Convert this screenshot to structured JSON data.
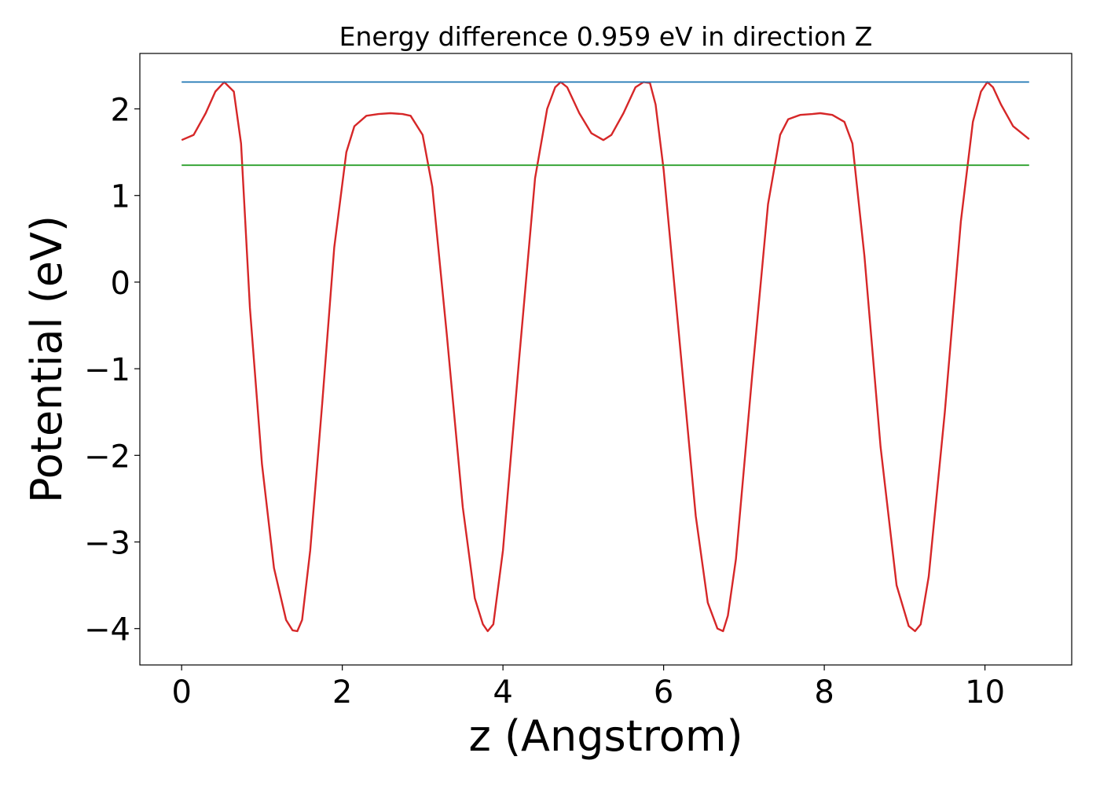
{
  "chart_data": {
    "type": "line",
    "title": "Energy difference 0.959 eV in direction Z",
    "xlabel": "z (Angstrom)",
    "ylabel": "Potential (eV)",
    "xlim": [
      -0.52,
      11.08
    ],
    "ylim": [
      -4.42,
      2.64
    ],
    "xticks": [
      0,
      2,
      4,
      6,
      8,
      10
    ],
    "xtick_labels": [
      "0",
      "2",
      "4",
      "6",
      "8",
      "10"
    ],
    "yticks": [
      -4,
      -3,
      -2,
      -1,
      0,
      1,
      2
    ],
    "ytick_labels": [
      "−4",
      "−3",
      "−2",
      "−1",
      "0",
      "1",
      "2"
    ],
    "grid": false,
    "legend": "none",
    "series": [
      {
        "color": "#d62728",
        "x": [
          0.0,
          0.15,
          0.3,
          0.42,
          0.53,
          0.65,
          0.74,
          0.85,
          1.0,
          1.15,
          1.3,
          1.38,
          1.44,
          1.5,
          1.6,
          1.75,
          1.9,
          2.05,
          2.15,
          2.3,
          2.45,
          2.6,
          2.75,
          2.85,
          3.0,
          3.12,
          3.3,
          3.5,
          3.65,
          3.75,
          3.81,
          3.88,
          4.0,
          4.2,
          4.4,
          4.55,
          4.65,
          4.72,
          4.8,
          4.95,
          5.1,
          5.25,
          5.35,
          5.5,
          5.65,
          5.75,
          5.83,
          5.9,
          6.0,
          6.2,
          6.4,
          6.55,
          6.67,
          6.74,
          6.8,
          6.9,
          7.1,
          7.3,
          7.45,
          7.55,
          7.7,
          7.85,
          7.95,
          8.1,
          8.25,
          8.35,
          8.5,
          8.7,
          8.9,
          9.05,
          9.13,
          9.2,
          9.3,
          9.5,
          9.7,
          9.85,
          9.95,
          10.03,
          10.1,
          10.2,
          10.35,
          10.55
        ],
        "y": [
          1.64,
          1.7,
          1.95,
          2.2,
          2.31,
          2.2,
          1.6,
          -0.3,
          -2.1,
          -3.3,
          -3.9,
          -4.02,
          -4.03,
          -3.9,
          -3.1,
          -1.4,
          0.4,
          1.5,
          1.8,
          1.92,
          1.94,
          1.95,
          1.94,
          1.92,
          1.7,
          1.1,
          -0.6,
          -2.6,
          -3.65,
          -3.95,
          -4.03,
          -3.95,
          -3.1,
          -0.9,
          1.2,
          2.0,
          2.25,
          2.31,
          2.25,
          1.95,
          1.72,
          1.64,
          1.7,
          1.95,
          2.25,
          2.31,
          2.3,
          2.05,
          1.3,
          -0.7,
          -2.7,
          -3.7,
          -4.0,
          -4.03,
          -3.85,
          -3.2,
          -1.1,
          0.9,
          1.7,
          1.88,
          1.93,
          1.94,
          1.95,
          1.93,
          1.85,
          1.6,
          0.3,
          -1.9,
          -3.5,
          -3.97,
          -4.03,
          -3.95,
          -3.4,
          -1.5,
          0.7,
          1.85,
          2.2,
          2.31,
          2.25,
          2.05,
          1.8,
          1.65
        ]
      },
      {
        "color": "#1f77b4",
        "x": [
          0.0,
          10.55
        ],
        "y": [
          2.31,
          2.31
        ]
      },
      {
        "color": "#2ca02c",
        "x": [
          0.0,
          10.55
        ],
        "y": [
          1.35,
          1.35
        ]
      }
    ]
  }
}
